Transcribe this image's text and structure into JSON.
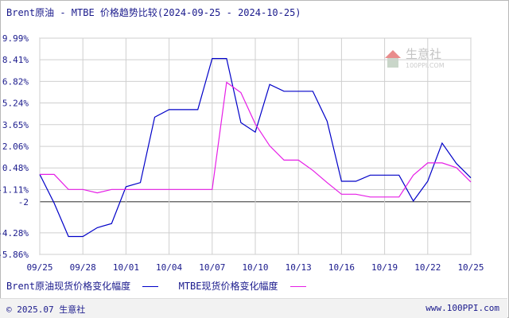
{
  "title": "Brent原油 - MTBE 价格趋势比较(2024-09-25 - 2024-10-25)",
  "watermark": {
    "name": "生意社",
    "url": "100PPI.COM"
  },
  "footer": {
    "copyright": "© 2025.07 生意社",
    "site": "www.100PPI.com"
  },
  "colors": {
    "brent": "#0000c8",
    "mtbe": "#e61ee6",
    "grid": "#cfcfcf",
    "axis_text": "#1a1a8c",
    "zero_line": "#555555"
  },
  "chart_data": {
    "type": "line",
    "x": [
      "09/25",
      "09/26",
      "09/27",
      "09/28",
      "09/29",
      "09/30",
      "10/01",
      "10/02",
      "10/03",
      "10/04",
      "10/05",
      "10/06",
      "10/07",
      "10/08",
      "10/09",
      "10/10",
      "10/11",
      "10/12",
      "10/13",
      "10/14",
      "10/15",
      "10/16",
      "10/17",
      "10/18",
      "10/19",
      "10/20",
      "10/21",
      "10/22",
      "10/23",
      "10/24",
      "10/25"
    ],
    "x_ticks": [
      "09/25",
      "09/28",
      "10/01",
      "10/04",
      "10/07",
      "10/10",
      "10/13",
      "10/16",
      "10/19",
      "10/22",
      "10/25"
    ],
    "y_ticks": [
      "9.99%",
      "8.41%",
      "6.82%",
      "5.24%",
      "3.65%",
      "2.06%",
      "0.48%",
      "-1.11%",
      "-2",
      "-4.28%",
      "-5.86%"
    ],
    "y_tick_values": [
      9.99,
      8.41,
      6.82,
      5.24,
      3.65,
      2.06,
      0.48,
      -1.11,
      -2,
      -4.28,
      -5.86
    ],
    "ylim": [
      -5.86,
      9.99
    ],
    "grid": true,
    "series": [
      {
        "name": "Brent原油现货价格变化幅度",
        "color": "#0000c8",
        "values": [
          0,
          -2.1,
          -4.55,
          -4.55,
          -3.9,
          -3.6,
          -0.9,
          -0.6,
          4.2,
          4.75,
          4.75,
          4.75,
          8.5,
          8.5,
          3.8,
          3.1,
          6.6,
          6.1,
          6.1,
          6.1,
          3.9,
          -0.5,
          -0.5,
          -0.05,
          -0.05,
          -0.05,
          -1.95,
          -0.5,
          2.3,
          0.8,
          -0.25
        ]
      },
      {
        "name": "MTBE现货价格变化幅度",
        "color": "#e61ee6",
        "values": [
          0,
          0,
          -1.1,
          -1.1,
          -1.35,
          -1.1,
          -1.1,
          -1.1,
          -1.1,
          -1.1,
          -1.1,
          -1.1,
          -1.1,
          6.75,
          6.0,
          3.7,
          2.1,
          1.05,
          1.05,
          0.3,
          -0.6,
          -1.45,
          -1.45,
          -1.65,
          -1.65,
          -1.65,
          -0.05,
          0.85,
          0.85,
          0.5,
          -0.55
        ]
      }
    ],
    "legend_position": "bottom-left"
  }
}
